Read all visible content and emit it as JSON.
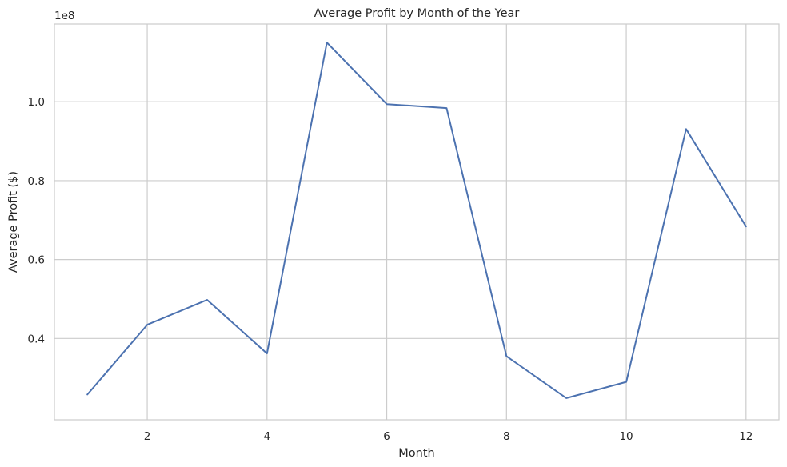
{
  "chart_data": {
    "type": "line",
    "title": "Average Profit by Month of the Year",
    "xlabel": "Month",
    "ylabel": "Average Profit ($)",
    "y_offset_label": "1e8",
    "x": [
      1,
      2,
      3,
      4,
      5,
      6,
      7,
      8,
      9,
      10,
      11,
      12
    ],
    "series": [
      {
        "values": [
          25800000,
          43500000,
          49800000,
          36200000,
          115000000,
          99400000,
          98400000,
          35500000,
          24900000,
          29000000,
          93100000,
          68400000
        ],
        "color": "#4c72b0"
      }
    ],
    "xlim": [
      0.45,
      12.55
    ],
    "ylim": [
      19400000,
      119700000
    ],
    "xticks": [
      2,
      4,
      6,
      8,
      10,
      12
    ],
    "xtick_labels": [
      "2",
      "4",
      "6",
      "8",
      "10",
      "12"
    ],
    "yticks": [
      40000000,
      60000000,
      80000000,
      100000000
    ],
    "ytick_labels": [
      "0.4",
      "0.6",
      "0.8",
      "1.0"
    ],
    "grid": true,
    "legend": "none"
  }
}
